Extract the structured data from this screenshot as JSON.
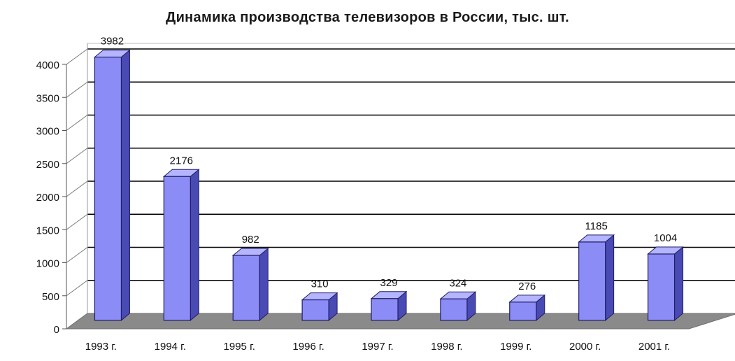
{
  "chart_data": {
    "type": "bar",
    "title": "Динамика производства телевизоров в России, тыс. шт.",
    "categories": [
      "1993 г.",
      "1994 г.",
      "1995 г.",
      "1996 г.",
      "1997 г.",
      "1998 г.",
      "1999 г.",
      "2000 г.",
      "2001 г."
    ],
    "values": [
      3982,
      2176,
      982,
      310,
      329,
      324,
      276,
      1185,
      1004
    ],
    "data_labels": [
      "3982",
      "2176",
      "982",
      "310",
      "329",
      "324",
      "276",
      "1185",
      "1004"
    ],
    "y_ticks": [
      "0",
      "500",
      "1000",
      "1500",
      "2000",
      "2500",
      "3000",
      "3500",
      "4000"
    ],
    "ylim": [
      0,
      4000
    ],
    "xlabel": "",
    "ylabel": "",
    "grid": true,
    "legend": "none",
    "three_d": true,
    "colors": {
      "bar_front": "#8c8cf7",
      "bar_side": "#4a4ab4",
      "bar_top": "#b4b4ff",
      "floor": "#8a8a8a",
      "gridline": "#000000",
      "axis": "#555555"
    }
  }
}
